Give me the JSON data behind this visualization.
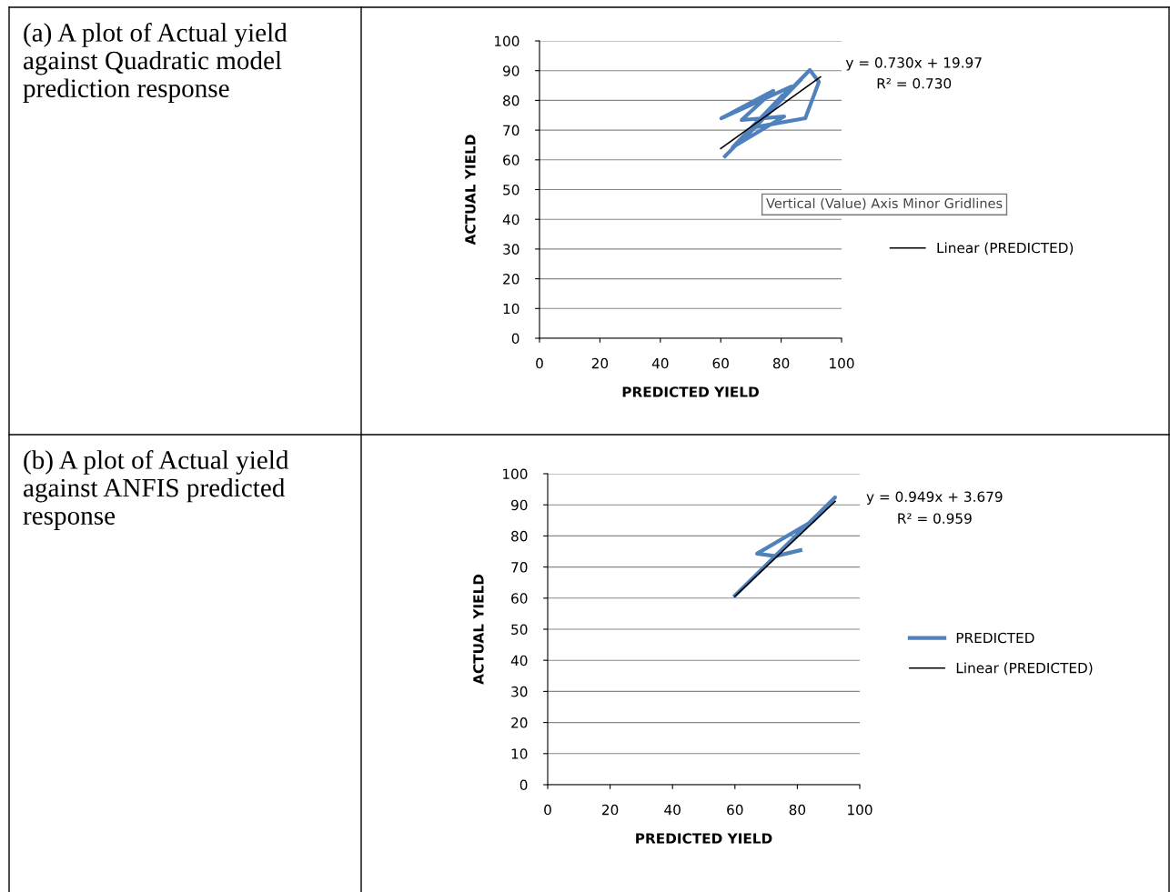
{
  "chart_data": [
    {
      "type": "line",
      "xlabel": "PREDICTED YIELD",
      "ylabel": "ACTUAL YIELD",
      "xlim": [
        0,
        100
      ],
      "ylim": [
        0,
        100
      ],
      "xticks": [
        0,
        20,
        40,
        60,
        80,
        100
      ],
      "yticks": [
        0,
        10,
        20,
        30,
        40,
        50,
        60,
        70,
        80,
        90,
        100
      ],
      "grid": "y",
      "legend": "right",
      "series": [
        {
          "color": "#4f81bd",
          "x": [
            61.4,
            89.5,
            92.5,
            88,
            71.4,
            83.4,
            60.2,
            77.4,
            66.9,
            81,
            63.9,
            80.4,
            68.4,
            86.4
          ],
          "values": [
            61.2,
            90.2,
            86.2,
            74,
            71,
            84.7,
            74,
            83.2,
            73.4,
            74.6,
            64.2,
            81.7,
            67.9,
            86.8
          ]
        },
        {
          "name": "Linear (PREDICTED)",
          "color": "#000000",
          "x": [
            60,
            93
          ],
          "values": [
            63.8,
            87.9
          ]
        }
      ],
      "annotations": [
        "y = 0.730x + 19.97",
        "R² = 0.730",
        "Vertical (Value) Axis Minor Gridlines",
        "(a) A plot of Actual yield\nagainst Quadratic model\nprediction response"
      ]
    },
    {
      "type": "line",
      "xlabel": "PREDICTED YIELD",
      "ylabel": "ACTUAL YIELD",
      "xlim": [
        0,
        100
      ],
      "ylim": [
        0,
        100
      ],
      "xticks": [
        0,
        20,
        40,
        60,
        80,
        100
      ],
      "yticks": [
        0,
        10,
        20,
        30,
        40,
        50,
        60,
        70,
        80,
        90,
        100
      ],
      "grid": "y",
      "legend": "right",
      "series": [
        {
          "name": "PREDICTED",
          "color": "#4f81bd",
          "x": [
            60,
            92.1,
            85.4,
            67.1,
            73,
            81
          ],
          "values": [
            60.8,
            92.4,
            85.1,
            74.3,
            73.5,
            75.4
          ]
        },
        {
          "name": "Linear (PREDICTED)",
          "color": "#000000",
          "x": [
            60,
            92.1
          ],
          "values": [
            60.6,
            91.1
          ]
        }
      ],
      "annotations": [
        "y = 0.949x + 3.679",
        "R² = 0.959",
        null,
        "(b) A plot of Actual yield\nagainst ANFIS predicted\nresponse"
      ]
    }
  ]
}
